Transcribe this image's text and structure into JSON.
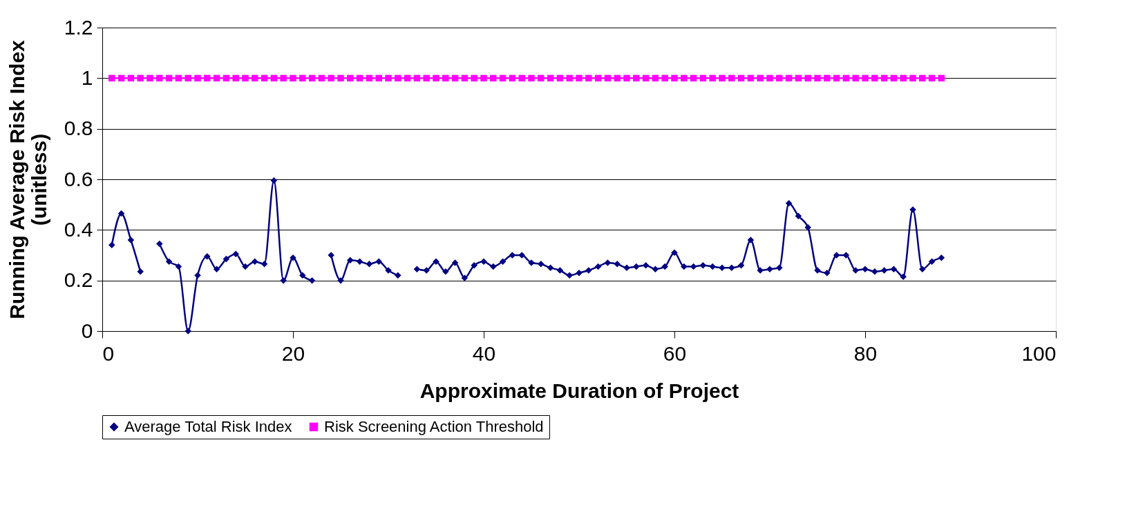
{
  "chart_data": {
    "type": "line",
    "xlabel": "Approximate Duration of Project",
    "ylabel": "Running Average Risk Index (unitless)",
    "x": [
      1,
      2,
      3,
      4,
      5,
      6,
      7,
      8,
      9,
      10,
      11,
      12,
      13,
      14,
      15,
      16,
      17,
      18,
      19,
      20,
      21,
      22,
      23,
      24,
      25,
      26,
      27,
      28,
      29,
      30,
      31,
      32,
      33,
      34,
      35,
      36,
      37,
      38,
      39,
      40,
      41,
      42,
      43,
      44,
      45,
      46,
      47,
      48,
      49,
      50,
      51,
      52,
      53,
      54,
      55,
      56,
      57,
      58,
      59,
      60,
      61,
      62,
      63,
      64,
      65,
      66,
      67,
      68,
      69,
      70,
      71,
      72,
      73,
      74,
      75,
      76,
      77,
      78,
      79,
      80,
      81,
      82,
      83,
      84,
      85,
      86,
      87,
      88
    ],
    "series": [
      {
        "name": "Average Total Risk Index",
        "color": "#000080",
        "marker": "diamond",
        "values": [
          0.34,
          0.465,
          0.36,
          0.235,
          null,
          0.345,
          0.275,
          0.255,
          0.0,
          0.22,
          0.295,
          0.245,
          0.285,
          0.305,
          0.255,
          0.275,
          0.265,
          0.595,
          0.2,
          0.29,
          0.22,
          0.2,
          null,
          0.3,
          0.2,
          0.28,
          0.275,
          0.265,
          0.275,
          0.24,
          0.22,
          null,
          0.245,
          0.24,
          0.275,
          0.235,
          0.27,
          0.21,
          0.26,
          0.275,
          0.255,
          0.275,
          0.3,
          0.3,
          0.27,
          0.265,
          0.25,
          0.24,
          0.22,
          0.23,
          0.24,
          0.255,
          0.27,
          0.265,
          0.25,
          0.255,
          0.26,
          0.245,
          0.255,
          0.31,
          0.255,
          0.255,
          0.26,
          0.255,
          0.25,
          0.25,
          0.26,
          0.36,
          0.24,
          0.245,
          0.25,
          0.505,
          0.455,
          0.41,
          0.24,
          0.23,
          0.3,
          0.3,
          0.24,
          0.245,
          0.235,
          0.24,
          0.245,
          0.215,
          0.48,
          0.245,
          0.275,
          0.29
        ]
      },
      {
        "name": "Risk Screening Action Threshold",
        "color": "#ff00ff",
        "marker": "square",
        "values": [
          1,
          1,
          1,
          1,
          1,
          1,
          1,
          1,
          1,
          1,
          1,
          1,
          1,
          1,
          1,
          1,
          1,
          1,
          1,
          1,
          1,
          1,
          1,
          1,
          1,
          1,
          1,
          1,
          1,
          1,
          1,
          1,
          1,
          1,
          1,
          1,
          1,
          1,
          1,
          1,
          1,
          1,
          1,
          1,
          1,
          1,
          1,
          1,
          1,
          1,
          1,
          1,
          1,
          1,
          1,
          1,
          1,
          1,
          1,
          1,
          1,
          1,
          1,
          1,
          1,
          1,
          1,
          1,
          1,
          1,
          1,
          1,
          1,
          1,
          1,
          1,
          1,
          1,
          1,
          1,
          1,
          1,
          1,
          1,
          1,
          1,
          1,
          1
        ]
      }
    ],
    "xlim": [
      0,
      100
    ],
    "xticks": [
      0,
      20,
      40,
      60,
      80,
      100
    ],
    "ylim": [
      0,
      1.2
    ],
    "yticks": [
      0,
      0.2,
      0.4,
      0.6,
      0.8,
      1,
      1.2
    ],
    "grid": "y",
    "legend": "bottom",
    "line_style": "solid"
  }
}
